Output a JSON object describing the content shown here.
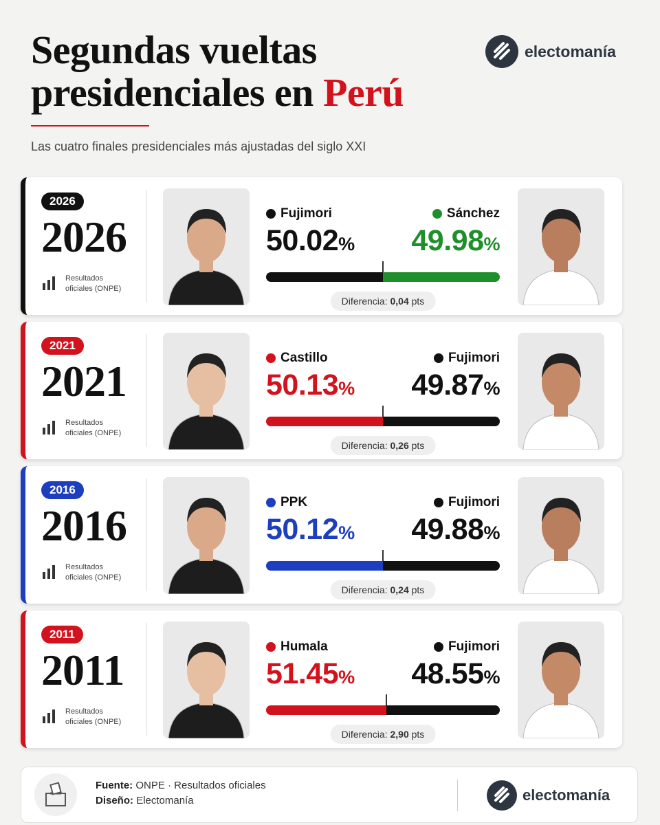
{
  "header": {
    "title_line1": "Segundas vueltas",
    "title_line2_prefix": "presidenciales en",
    "title_line2_highlight": "Perú",
    "subtitle": "Las cuatro finales presidenciales más ajustadas del siglo XXI",
    "brand": "electomanía"
  },
  "elections": [
    {
      "year_badge": "2026",
      "year": "2026",
      "accent": "#111111",
      "source_label": "Resultados oficiales (ONPE)",
      "difference_label": "Diferencia:",
      "difference": "0,04",
      "difference_unit": "pts",
      "candidates": [
        {
          "name": "Fujimori",
          "share": 50.02,
          "unit": "%",
          "color": "#111111",
          "text_color": "#111111"
        },
        {
          "name": "Sánchez",
          "share": 49.98,
          "unit": "%",
          "color": "#1f8f2b",
          "text_color": "#1f8f2b"
        }
      ]
    },
    {
      "year_badge": "2021",
      "year": "2021",
      "accent": "#d2121c",
      "source_label": "Resultados oficiales (ONPE)",
      "difference_label": "Diferencia:",
      "difference": "0,26",
      "difference_unit": "pts",
      "candidates": [
        {
          "name": "Castillo",
          "share": 50.13,
          "unit": "%",
          "color": "#d2121c",
          "text_color": "#d2121c"
        },
        {
          "name": "Fujimori",
          "share": 49.87,
          "unit": "%",
          "color": "#111111",
          "text_color": "#111111"
        }
      ]
    },
    {
      "year_badge": "2016",
      "year": "2016",
      "accent": "#1d3fbf",
      "source_label": "Resultados oficiales (ONPE)",
      "difference_label": "Diferencia:",
      "difference": "0,24",
      "difference_unit": "pts",
      "candidates": [
        {
          "name": "PPK",
          "share": 50.12,
          "unit": "%",
          "color": "#1d3fbf",
          "text_color": "#1d3fbf"
        },
        {
          "name": "Fujimori",
          "share": 49.88,
          "unit": "%",
          "color": "#111111",
          "text_color": "#111111"
        }
      ]
    },
    {
      "year_badge": "2011",
      "year": "2011",
      "accent": "#d2121c",
      "source_label": "Resultados oficiales (ONPE)",
      "difference_label": "Diferencia:",
      "difference": "2,90",
      "difference_unit": "pts",
      "candidates": [
        {
          "name": "Humala",
          "share": 51.45,
          "unit": "%",
          "color": "#d2121c",
          "text_color": "#d2121c"
        },
        {
          "name": "Fujimori",
          "share": 48.55,
          "unit": "%",
          "color": "#111111",
          "text_color": "#111111"
        }
      ]
    }
  ],
  "footer": {
    "source_label": "Fuente:",
    "source": "ONPE · Resultados oficiales",
    "design_label": "Diseño:",
    "design": "Electomanía",
    "brand": "electomanía"
  }
}
